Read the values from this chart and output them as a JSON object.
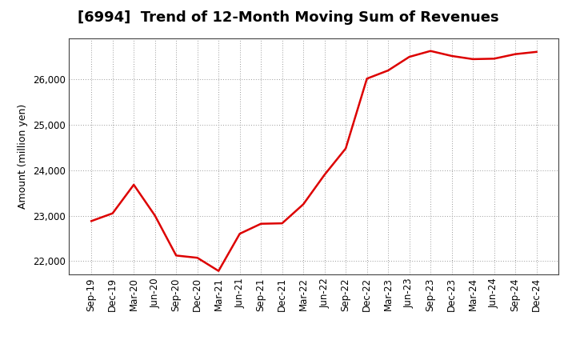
{
  "title": "[6994]  Trend of 12-Month Moving Sum of Revenues",
  "ylabel": "Amount (million yen)",
  "line_color": "#dd0000",
  "background_color": "#ffffff",
  "plot_bg_color": "#ffffff",
  "grid_color": "#999999",
  "x_labels": [
    "Sep-19",
    "Dec-19",
    "Mar-20",
    "Jun-20",
    "Sep-20",
    "Dec-20",
    "Mar-21",
    "Jun-21",
    "Sep-21",
    "Dec-21",
    "Mar-22",
    "Jun-22",
    "Sep-22",
    "Dec-22",
    "Mar-23",
    "Jun-23",
    "Sep-23",
    "Dec-23",
    "Mar-24",
    "Jun-24",
    "Sep-24",
    "Dec-24"
  ],
  "values": [
    22880,
    23050,
    23680,
    23000,
    22120,
    22070,
    21780,
    22600,
    22820,
    22830,
    23250,
    23900,
    24480,
    26020,
    26200,
    26500,
    26630,
    26520,
    26450,
    26460,
    26560,
    26610
  ],
  "ylim": [
    21700,
    26900
  ],
  "yticks": [
    22000,
    23000,
    24000,
    25000,
    26000
  ],
  "line_width": 1.8,
  "title_fontsize": 13,
  "label_fontsize": 9,
  "tick_fontsize": 8.5
}
